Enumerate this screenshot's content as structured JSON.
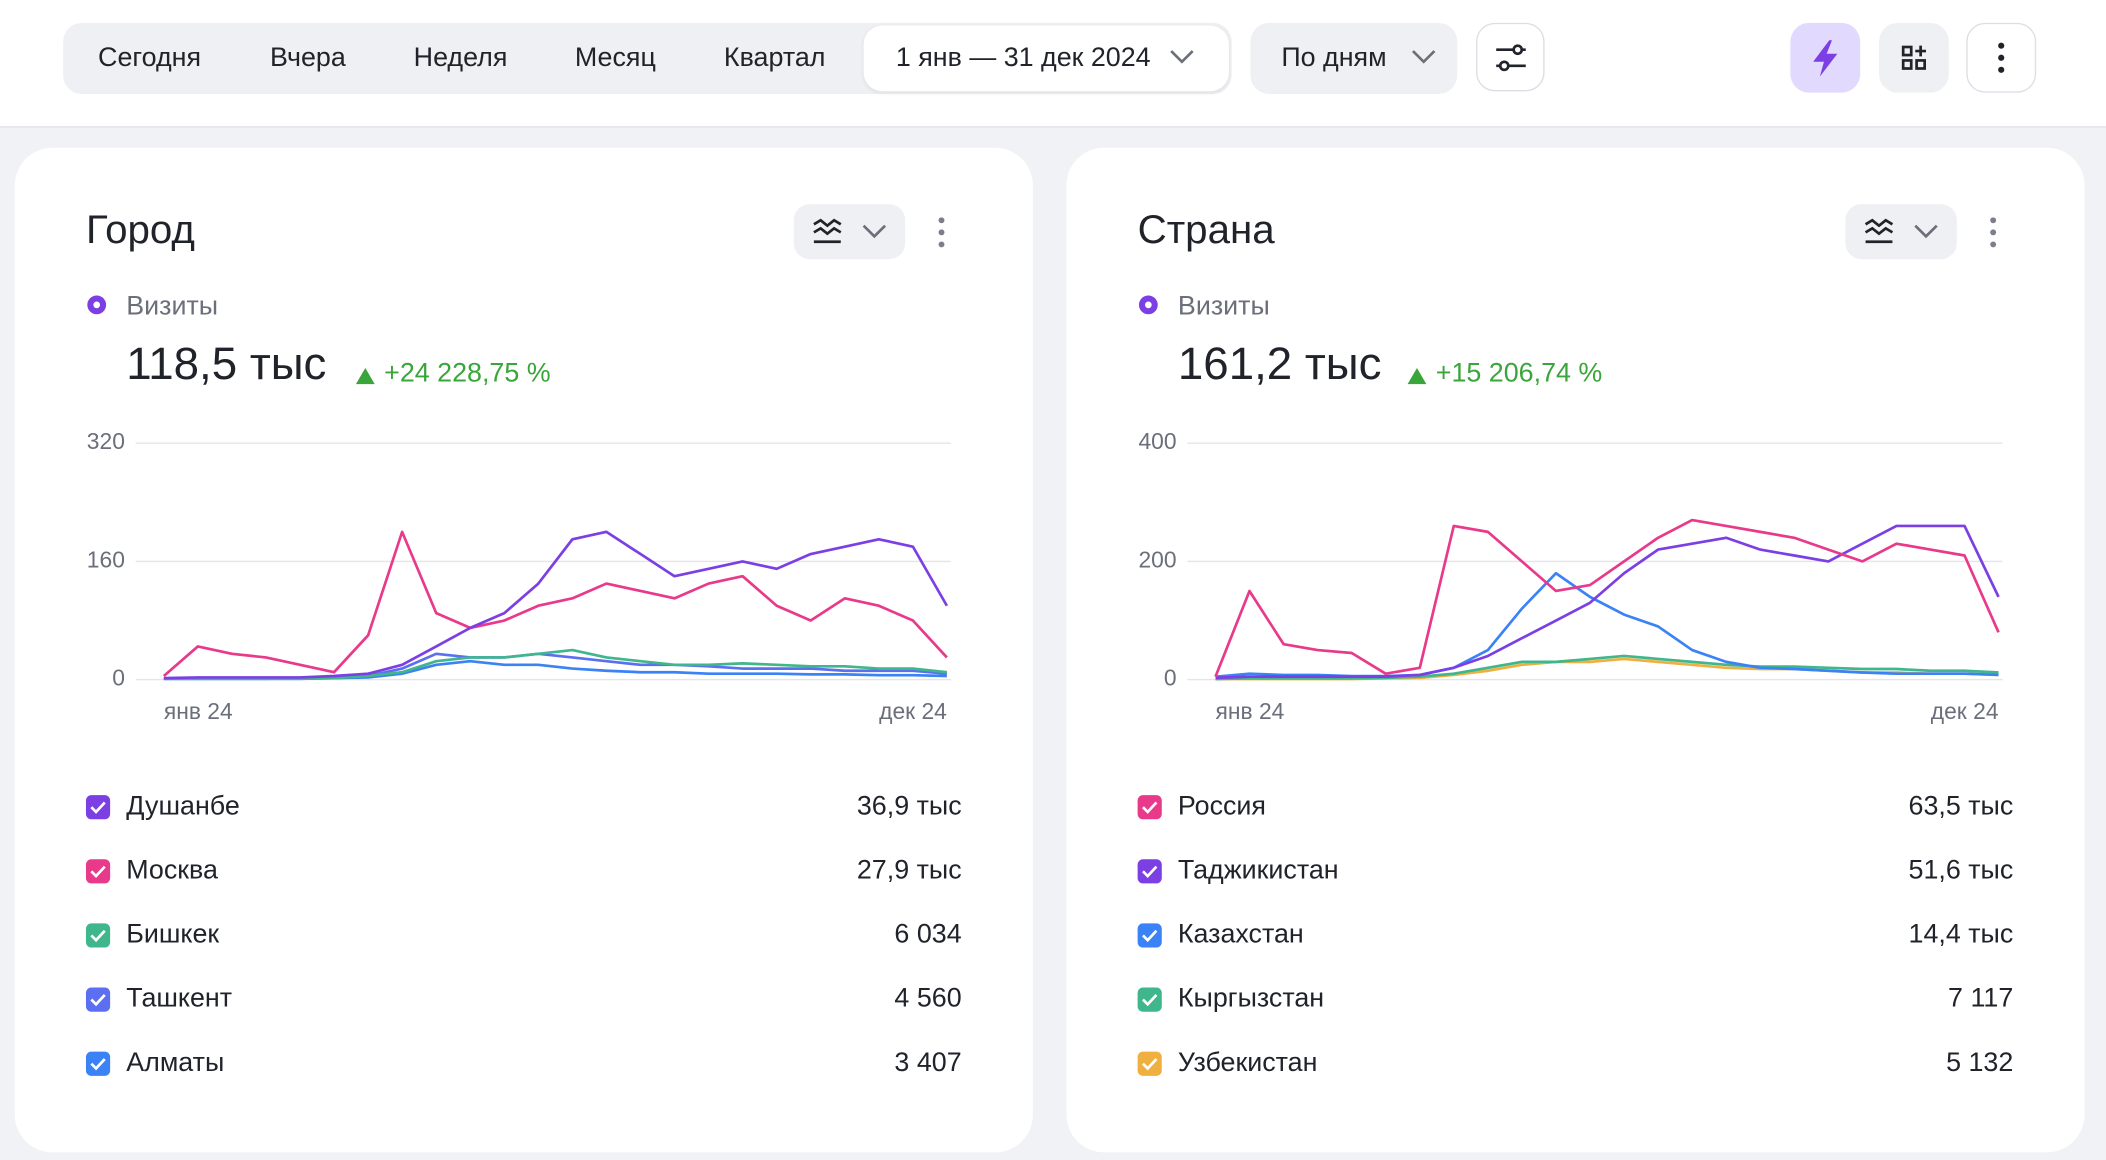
{
  "toolbar": {
    "periods": [
      "Сегодня",
      "Вчера",
      "Неделя",
      "Месяц",
      "Квартал"
    ],
    "date_range": "1 янв — 31 дек 2024",
    "grouping": "По дням"
  },
  "widgets": [
    {
      "title": "Город",
      "metric": "Визиты",
      "total": "118,5 тыс",
      "change": "+24 228,75 %",
      "legend_values": [
        "36,9 тыс",
        "27,9 тыс",
        "6 034",
        "4 560",
        "3 407"
      ],
      "chart_data": {
        "type": "line",
        "categories": [
          "янв 24",
          null,
          null,
          null,
          null,
          null,
          null,
          null,
          null,
          null,
          null,
          null,
          null,
          null,
          null,
          null,
          null,
          null,
          null,
          null,
          null,
          null,
          null,
          "дек 24"
        ],
        "ylim": [
          0,
          320
        ],
        "yticks": [
          0,
          160,
          320
        ],
        "grid": true,
        "series": [
          {
            "name": "Душанбе",
            "color": "#7b3fe4",
            "values": [
              2,
              3,
              3,
              3,
              3,
              5,
              8,
              20,
              45,
              70,
              90,
              130,
              190,
              200,
              170,
              140,
              150,
              160,
              150,
              170,
              180,
              190,
              180,
              100
            ]
          },
          {
            "name": "Москва",
            "color": "#e8398a",
            "values": [
              5,
              45,
              35,
              30,
              20,
              10,
              60,
              200,
              90,
              70,
              80,
              100,
              110,
              130,
              120,
              110,
              130,
              140,
              100,
              80,
              110,
              100,
              80,
              30
            ]
          },
          {
            "name": "Бишкек",
            "color": "#3fb68b",
            "values": [
              1,
              1,
              1,
              1,
              1,
              2,
              5,
              10,
              25,
              30,
              30,
              35,
              40,
              30,
              25,
              20,
              20,
              22,
              20,
              18,
              18,
              15,
              15,
              10
            ]
          },
          {
            "name": "Ташкент",
            "color": "#5b6ff0",
            "values": [
              1,
              1,
              1,
              1,
              2,
              3,
              5,
              15,
              35,
              30,
              30,
              35,
              30,
              25,
              20,
              20,
              18,
              15,
              15,
              15,
              12,
              12,
              12,
              8
            ]
          },
          {
            "name": "Алматы",
            "color": "#3b82f6",
            "values": [
              1,
              1,
              1,
              1,
              1,
              2,
              3,
              8,
              20,
              25,
              20,
              20,
              15,
              12,
              10,
              10,
              8,
              8,
              8,
              7,
              7,
              6,
              6,
              5
            ]
          }
        ]
      }
    },
    {
      "title": "Страна",
      "metric": "Визиты",
      "total": "161,2 тыс",
      "change": "+15 206,74 %",
      "legend_values": [
        "63,5 тыс",
        "51,6 тыс",
        "14,4 тыс",
        "7 117",
        "5 132"
      ],
      "chart_data": {
        "type": "line",
        "categories": [
          "янв 24",
          null,
          null,
          null,
          null,
          null,
          null,
          null,
          null,
          null,
          null,
          null,
          null,
          null,
          null,
          null,
          null,
          null,
          null,
          null,
          null,
          null,
          null,
          "дек 24"
        ],
        "ylim": [
          0,
          400
        ],
        "yticks": [
          0,
          200,
          400
        ],
        "grid": true,
        "series": [
          {
            "name": "Россия",
            "color": "#e8398a",
            "values": [
              5,
              150,
              60,
              50,
              45,
              10,
              20,
              260,
              250,
              200,
              150,
              160,
              200,
              240,
              270,
              260,
              250,
              240,
              220,
              200,
              230,
              220,
              210,
              80
            ]
          },
          {
            "name": "Таджикистан",
            "color": "#7b3fe4",
            "values": [
              3,
              5,
              5,
              5,
              5,
              5,
              8,
              20,
              40,
              70,
              100,
              130,
              180,
              220,
              230,
              240,
              220,
              210,
              200,
              230,
              260,
              260,
              260,
              140
            ]
          },
          {
            "name": "Казахстан",
            "color": "#3b82f6",
            "values": [
              5,
              10,
              8,
              8,
              6,
              6,
              8,
              20,
              50,
              120,
              180,
              140,
              110,
              90,
              50,
              30,
              20,
              18,
              15,
              12,
              10,
              10,
              10,
              8
            ]
          },
          {
            "name": "Кыргызстан",
            "color": "#3fb68b",
            "values": [
              1,
              2,
              2,
              2,
              2,
              3,
              5,
              10,
              20,
              30,
              30,
              35,
              40,
              35,
              30,
              25,
              22,
              22,
              20,
              18,
              18,
              15,
              15,
              12
            ]
          },
          {
            "name": "Узбекистан",
            "color": "#f0b040",
            "values": [
              1,
              1,
              1,
              1,
              1,
              2,
              3,
              8,
              15,
              25,
              30,
              30,
              35,
              30,
              25,
              20,
              18,
              18,
              15,
              12,
              12,
              10,
              10,
              8
            ]
          }
        ]
      }
    }
  ]
}
